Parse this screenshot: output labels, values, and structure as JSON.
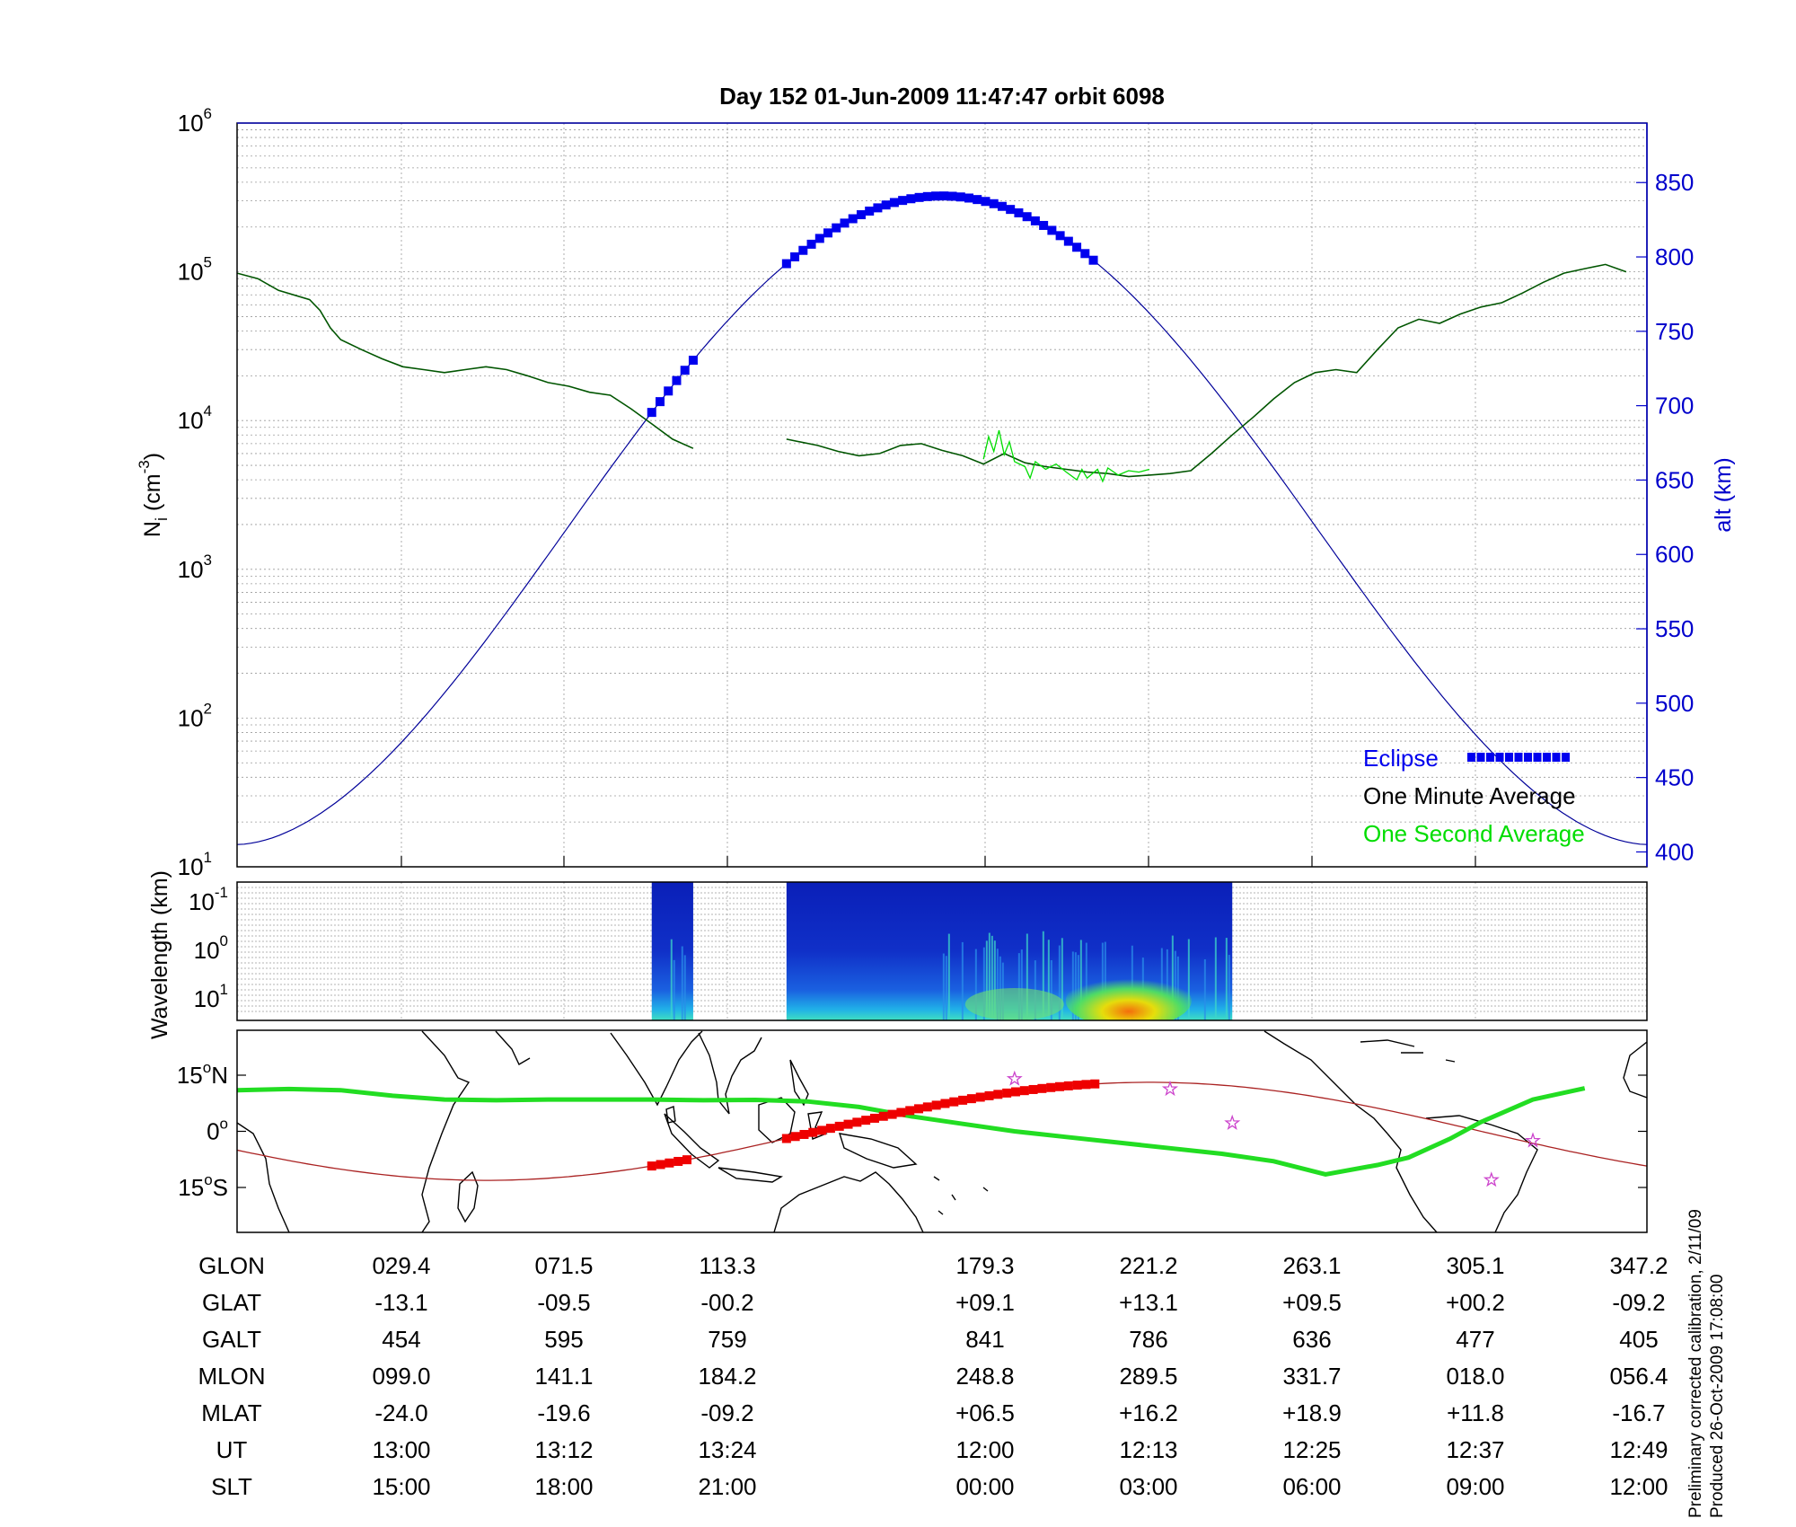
{
  "title": "Day 152  01-Jun-2009 11:47:47   orbit 6098",
  "colors": {
    "eclipse": "#0000ee",
    "one_minute": "#005500",
    "one_second": "#00dd00",
    "altitude": "#000099",
    "alt_axis": "#0000cc",
    "ground_track": "#aa2222",
    "eclipse_map": "#ee0000",
    "dip_equator": "#22dd22",
    "star": "#cc44cc"
  },
  "chart_data": [
    {
      "type": "line",
      "name": "ion-density-and-altitude",
      "title": "Day 152  01-Jun-2009 11:47:47   orbit 6098",
      "ylabel": "N_i (cm^-3)",
      "ylabel_main": "N",
      "ylabel_sub": "i",
      "ylabel_unit_a": " (cm",
      "ylabel_unit_sup": "-3",
      "ylabel_unit_b": ")",
      "yscale": "log",
      "ylim": [
        10,
        1000000
      ],
      "ytick_exponents": [
        "1",
        "2",
        "3",
        "4",
        "5",
        "6"
      ],
      "y2label": "alt (km)",
      "y2lim": [
        390,
        890
      ],
      "y2ticks": [
        "400",
        "450",
        "500",
        "550",
        "600",
        "650",
        "700",
        "750",
        "800",
        "850"
      ],
      "y2values": [
        400,
        450,
        500,
        550,
        600,
        650,
        700,
        750,
        800,
        850
      ],
      "grid": true,
      "legend_position": "bottom-right",
      "legend": [
        {
          "label": "Eclipse",
          "key": "eclipse"
        },
        {
          "label": "One Minute Average",
          "key": "one_minute"
        },
        {
          "label": "One Second Average",
          "key": "one_second"
        }
      ],
      "series": [
        {
          "key": "one_minute",
          "segments": [
            [
              [
                0.0,
                98000
              ],
              [
                0.02,
                90000
              ],
              [
                0.04,
                75000
              ],
              [
                0.07,
                65000
              ],
              [
                0.08,
                55000
              ],
              [
                0.09,
                42000
              ],
              [
                0.1,
                35000
              ],
              [
                0.12,
                30000
              ],
              [
                0.14,
                26000
              ],
              [
                0.16,
                23000
              ],
              [
                0.18,
                22000
              ],
              [
                0.2,
                21000
              ],
              [
                0.22,
                22000
              ],
              [
                0.24,
                23000
              ],
              [
                0.26,
                22000
              ],
              [
                0.28,
                20000
              ],
              [
                0.3,
                18000
              ],
              [
                0.32,
                17000
              ],
              [
                0.34,
                15500
              ],
              [
                0.36,
                14800
              ],
              [
                0.38,
                12000
              ],
              [
                0.4,
                9500
              ],
              [
                0.42,
                7500
              ],
              [
                0.44,
                6500
              ]
            ],
            [
              [
                0.53,
                7500
              ],
              [
                0.56,
                6800
              ],
              [
                0.58,
                6200
              ],
              [
                0.6,
                5800
              ],
              [
                0.62,
                6000
              ],
              [
                0.64,
                6800
              ],
              [
                0.66,
                7000
              ],
              [
                0.68,
                6300
              ],
              [
                0.7,
                5800
              ],
              [
                0.72,
                5100
              ],
              [
                0.74,
                6000
              ],
              [
                0.76,
                5200
              ],
              [
                0.78,
                4900
              ],
              [
                0.8,
                4700
              ],
              [
                0.82,
                4500
              ],
              [
                0.84,
                4400
              ],
              [
                0.86,
                4200
              ],
              [
                0.88,
                4300
              ],
              [
                0.9,
                4400
              ],
              [
                0.92,
                4600
              ],
              [
                0.94,
                6000
              ],
              [
                0.96,
                8000
              ],
              [
                0.98,
                10500
              ],
              [
                1.0,
                14000
              ],
              [
                1.02,
                18000
              ],
              [
                1.04,
                21000
              ],
              [
                1.06,
                22000
              ],
              [
                1.08,
                21000
              ],
              [
                1.1,
                30000
              ],
              [
                1.12,
                42000
              ],
              [
                1.14,
                48000
              ],
              [
                1.16,
                45000
              ],
              [
                1.18,
                52000
              ],
              [
                1.2,
                58000
              ],
              [
                1.22,
                62000
              ],
              [
                1.24,
                72000
              ],
              [
                1.26,
                85000
              ],
              [
                1.28,
                98000
              ],
              [
                1.3,
                105000
              ],
              [
                1.32,
                112000
              ],
              [
                1.34,
                100000
              ]
            ]
          ]
        },
        {
          "key": "one_second",
          "segments": [
            [
              [
                0.72,
                5500
              ],
              [
                0.725,
                7800
              ],
              [
                0.73,
                6200
              ],
              [
                0.735,
                8600
              ],
              [
                0.74,
                5900
              ],
              [
                0.745,
                7200
              ],
              [
                0.75,
                5300
              ],
              [
                0.76,
                4900
              ],
              [
                0.765,
                4100
              ],
              [
                0.77,
                5300
              ],
              [
                0.78,
                4700
              ],
              [
                0.79,
                5100
              ],
              [
                0.8,
                4500
              ],
              [
                0.81,
                4000
              ],
              [
                0.815,
                4700
              ],
              [
                0.82,
                4100
              ],
              [
                0.83,
                4700
              ],
              [
                0.835,
                3900
              ],
              [
                0.84,
                4800
              ],
              [
                0.85,
                4300
              ],
              [
                0.86,
                4600
              ],
              [
                0.87,
                4500
              ],
              [
                0.88,
                4700
              ]
            ]
          ]
        },
        {
          "key": "altitude",
          "axis": "y2",
          "x_start": 0.0,
          "x_end": 1.36,
          "peak_x": 0.68,
          "peak": 841,
          "min": 405
        }
      ],
      "eclipse_segments": [
        [
          0.4,
          0.44
        ],
        [
          0.53,
          0.83
        ]
      ]
    },
    {
      "type": "heatmap",
      "name": "wavelength-spectrogram",
      "ylabel": "Wavelength (km)",
      "ytick_base": "10",
      "ytick_exponents": [
        "-1",
        "0",
        "1"
      ],
      "data_segments": [
        [
          0.4,
          0.44
        ],
        [
          0.53,
          0.96
        ]
      ],
      "hot_spot_x": 0.86
    },
    {
      "type": "line",
      "name": "orbit-ground-track-map",
      "ytick_labels": [
        {
          "num": "15",
          "deg": "o",
          "hemi": "N",
          "lat": 15
        },
        {
          "num": "0",
          "deg": "o",
          "hemi": "",
          "lat": 0
        },
        {
          "num": "15",
          "deg": "o",
          "hemi": "S",
          "lat": -15
        }
      ],
      "ylim": [
        -27,
        27
      ],
      "ground_track": {
        "amplitude": 13.1,
        "peak_x": 0.88
      },
      "dip_equator": [
        [
          0.0,
          11
        ],
        [
          0.05,
          11.3
        ],
        [
          0.1,
          11
        ],
        [
          0.15,
          9.5
        ],
        [
          0.2,
          8.5
        ],
        [
          0.25,
          8.3
        ],
        [
          0.3,
          8.5
        ],
        [
          0.35,
          8.5
        ],
        [
          0.4,
          8.5
        ],
        [
          0.45,
          8.3
        ],
        [
          0.5,
          8.4
        ],
        [
          0.55,
          8
        ],
        [
          0.6,
          6.5
        ],
        [
          0.65,
          4
        ],
        [
          0.7,
          2
        ],
        [
          0.75,
          0
        ],
        [
          0.8,
          -1.5
        ],
        [
          0.85,
          -3
        ],
        [
          0.9,
          -4.5
        ],
        [
          0.95,
          -6
        ],
        [
          1.0,
          -8
        ],
        [
          1.05,
          -11.5
        ],
        [
          1.1,
          -9
        ],
        [
          1.13,
          -7
        ],
        [
          1.17,
          -2
        ],
        [
          1.2,
          2.5
        ],
        [
          1.25,
          8.5
        ],
        [
          1.3,
          11.5
        ]
      ],
      "stars": [
        [
          0.75,
          14
        ],
        [
          0.9,
          11.3
        ],
        [
          0.96,
          2.2
        ],
        [
          1.21,
          -13
        ],
        [
          1.25,
          -2.5
        ]
      ]
    }
  ],
  "table": {
    "row_labels": [
      "GLON",
      "GLAT",
      "GALT",
      "MLON",
      "MLAT",
      "UT",
      "SLT"
    ],
    "columns": [
      {
        "x": 0.1,
        "values": [
          "029.4",
          "-13.1",
          "454",
          "099.0",
          "-24.0",
          "13:00",
          "15:00"
        ]
      },
      {
        "x": 0.2,
        "values": [
          "071.5",
          "-09.5",
          "595",
          "141.1",
          "-19.6",
          "13:12",
          "18:00"
        ]
      },
      {
        "x": 0.3,
        "values": [
          "113.3",
          "-00.2",
          "759",
          "184.2",
          "-09.2",
          "13:24",
          "21:00"
        ]
      },
      {
        "x": 0.6,
        "values": [
          "179.3",
          "+09.1",
          "841",
          "248.8",
          "+06.5",
          "12:00",
          "00:00"
        ]
      },
      {
        "x": 0.7,
        "values": [
          "221.2",
          "+13.1",
          "786",
          "289.5",
          "+16.2",
          "12:13",
          "03:00"
        ]
      },
      {
        "x": 0.8,
        "values": [
          "263.1",
          "+09.5",
          "636",
          "331.7",
          "+18.9",
          "12:25",
          "06:00"
        ]
      },
      {
        "x": 0.9,
        "values": [
          "305.1",
          "+00.2",
          "477",
          "018.0",
          "+11.8",
          "12:37",
          "09:00"
        ]
      },
      {
        "x": 1.0,
        "values": [
          "347.2",
          "-09.2",
          "405",
          "056.4",
          "-16.7",
          "12:49",
          "12:00"
        ]
      }
    ]
  },
  "footnote": {
    "line1": "Preliminary corrected calibration, 2/11/09",
    "line2": "Produced 26-Oct-2009 17:08:00"
  }
}
